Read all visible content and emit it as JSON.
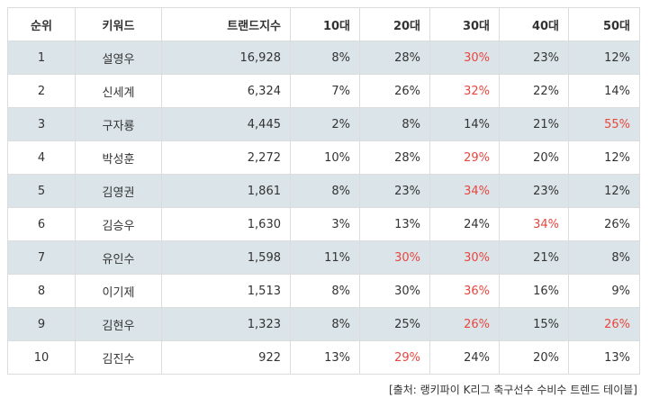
{
  "table": {
    "headers": [
      "순위",
      "키워드",
      "트랜드지수",
      "10대",
      "20대",
      "30대",
      "40대",
      "50대"
    ],
    "rows": [
      {
        "cells": [
          "1",
          "설영우",
          "16,928",
          "8%",
          "28%",
          "30%",
          "23%",
          "12%"
        ],
        "highlight": [
          false,
          false,
          false,
          false,
          false,
          true,
          false,
          false
        ]
      },
      {
        "cells": [
          "2",
          "신세계",
          "6,324",
          "7%",
          "26%",
          "32%",
          "22%",
          "14%"
        ],
        "highlight": [
          false,
          false,
          false,
          false,
          false,
          true,
          false,
          false
        ]
      },
      {
        "cells": [
          "3",
          "구자룡",
          "4,445",
          "2%",
          "8%",
          "14%",
          "21%",
          "55%"
        ],
        "highlight": [
          false,
          false,
          false,
          false,
          false,
          false,
          false,
          true
        ]
      },
      {
        "cells": [
          "4",
          "박성훈",
          "2,272",
          "10%",
          "28%",
          "29%",
          "20%",
          "12%"
        ],
        "highlight": [
          false,
          false,
          false,
          false,
          false,
          true,
          false,
          false
        ]
      },
      {
        "cells": [
          "5",
          "김영권",
          "1,861",
          "8%",
          "23%",
          "34%",
          "23%",
          "12%"
        ],
        "highlight": [
          false,
          false,
          false,
          false,
          false,
          true,
          false,
          false
        ]
      },
      {
        "cells": [
          "6",
          "김승우",
          "1,630",
          "3%",
          "13%",
          "24%",
          "34%",
          "26%"
        ],
        "highlight": [
          false,
          false,
          false,
          false,
          false,
          false,
          true,
          false
        ]
      },
      {
        "cells": [
          "7",
          "유인수",
          "1,598",
          "11%",
          "30%",
          "30%",
          "21%",
          "8%"
        ],
        "highlight": [
          false,
          false,
          false,
          false,
          true,
          true,
          false,
          false
        ]
      },
      {
        "cells": [
          "8",
          "이기제",
          "1,513",
          "8%",
          "30%",
          "36%",
          "16%",
          "9%"
        ],
        "highlight": [
          false,
          false,
          false,
          false,
          false,
          true,
          false,
          false
        ]
      },
      {
        "cells": [
          "9",
          "김현우",
          "1,323",
          "8%",
          "25%",
          "26%",
          "15%",
          "26%"
        ],
        "highlight": [
          false,
          false,
          false,
          false,
          false,
          true,
          false,
          true
        ]
      },
      {
        "cells": [
          "10",
          "김진수",
          "922",
          "13%",
          "29%",
          "24%",
          "20%",
          "13%"
        ],
        "highlight": [
          false,
          false,
          false,
          false,
          true,
          false,
          false,
          false
        ]
      }
    ]
  },
  "source": "[출처: 랭키파이 K리그 축구선수 수비수 트렌드 테이블]",
  "colors": {
    "highlight": "#e8463f",
    "stripe": "#dbe4e8",
    "border": "#dcdcdc"
  }
}
